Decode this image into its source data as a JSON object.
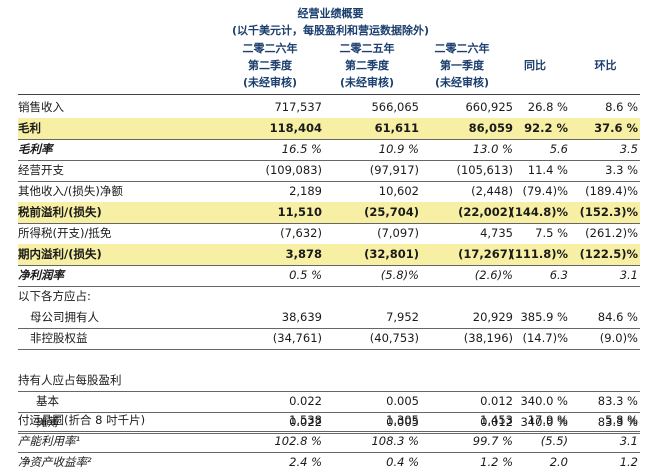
{
  "title": "经营业绩概要",
  "subtitle": "(以千美元计，每股盈利和营运数据除外)",
  "columns": [
    {
      "line1": "二零二六年",
      "line2": "第二季度",
      "line3": "(未经审核)"
    },
    {
      "line1": "二零二五年",
      "line2": "第二季度",
      "line3": "(未经审核)"
    },
    {
      "line1": "二零二六年",
      "line2": "第一季度",
      "line3": "(未经审核)"
    },
    {
      "line1": "",
      "line2": "同比",
      "line3": ""
    },
    {
      "line1": "",
      "line2": "环比",
      "line3": ""
    }
  ],
  "rows": [
    {
      "label": "销售收入",
      "v": [
        "717,537",
        "566,065",
        "660,925",
        "26.8 %",
        "8.6 %"
      ]
    },
    {
      "label": "毛利",
      "v": [
        "118,404",
        "61,611",
        "86,059",
        "92.2 %",
        "37.6 %"
      ]
    },
    {
      "label": "毛利率",
      "v": [
        "16.5 %",
        "10.9 %",
        "13.0 %",
        "5.6",
        "3.5"
      ]
    },
    {
      "label": "经营开支",
      "v": [
        "(109,083)",
        "(97,917)",
        "(105,613)",
        "11.4 %",
        "3.3 %"
      ]
    },
    {
      "label": "其他收入/(损失)净额",
      "v": [
        "2,189",
        "10,602",
        "(2,448)",
        "(79.4)%",
        "(189.4)%"
      ]
    },
    {
      "label": "税前溢利/(损失)",
      "v": [
        "11,510",
        "(25,704)",
        "(22,002)",
        "(144.8)%",
        "(152.3)%"
      ]
    },
    {
      "label": "所得税(开支)/抵免",
      "v": [
        "(7,632)",
        "(7,097)",
        "4,735",
        "7.5 %",
        "(261.2)%"
      ]
    },
    {
      "label": "期内溢利/(损失)",
      "v": [
        "3,878",
        "(32,801)",
        "(17,267)",
        "(111.8)%",
        "(122.5)%"
      ]
    },
    {
      "label": "净利润率",
      "v": [
        "0.5 %",
        "(5.8)%",
        "(2.6)%",
        "6.3",
        "3.1"
      ]
    },
    {
      "label": "以下各方应占:",
      "v": [
        "",
        "",
        "",
        "",
        ""
      ]
    },
    {
      "label": "母公司拥有人",
      "v": [
        "38,639",
        "7,952",
        "20,929",
        "385.9 %",
        "84.6 %"
      ]
    },
    {
      "label": "非控股权益",
      "v": [
        "(34,761)",
        "(40,753)",
        "(38,196)",
        "(14.7)%",
        "(9.0)%"
      ]
    },
    {
      "label": "",
      "v": [
        "",
        "",
        "",
        "",
        ""
      ]
    },
    {
      "label": "持有人应占每股盈利",
      "v": [
        "",
        "",
        "",
        "",
        ""
      ]
    },
    {
      "label": "基本",
      "v": [
        "0.022",
        "0.005",
        "0.012",
        "340.0 %",
        "83.3 %"
      ]
    },
    {
      "label": "摊薄",
      "v": [
        "0.022",
        "0.005",
        "0.012",
        "340.0 %",
        "83.3 %"
      ]
    },
    {
      "label": "付运晶圆(折合 8 吋千片)",
      "v": [
        "1,538",
        "1,305",
        "1,453",
        "17.9 %",
        "5.8 %"
      ]
    },
    {
      "label": "产能利用率¹",
      "v": [
        "102.8 %",
        "108.3 %",
        "99.7 %",
        "(5.5)",
        "3.1"
      ]
    },
    {
      "label": "净资产收益率²",
      "v": [
        "2.4 %",
        "0.4 %",
        "1.2 %",
        "2.0",
        "1.2"
      ]
    }
  ],
  "highlight_color": "#f7f0a4",
  "header_color": "#1b3f6e"
}
